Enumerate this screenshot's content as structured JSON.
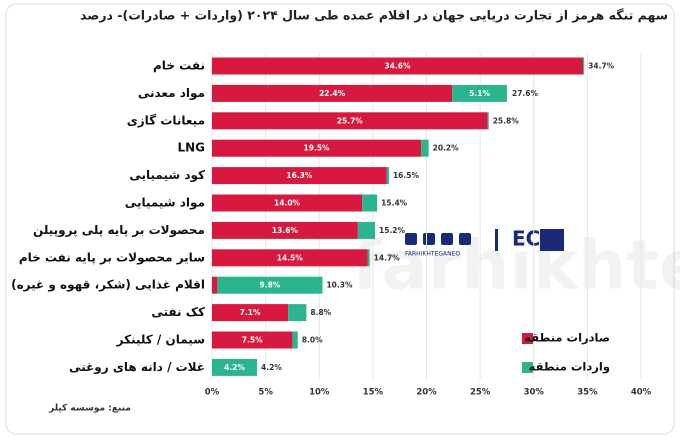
{
  "chart_data": {
    "type": "stacked-bar-horizontal",
    "title": "سهم تنگه هرمز از تجارت دریایی جهان در اقلام عمده طی سال ۲۰۲۴ (واردات + صادرات)- درصد",
    "categories": [
      "نفت خام",
      "مواد معدنی",
      "میعانات گازی",
      "LNG",
      "کود شیمیایی",
      "مواد شیمیایی",
      "محصولات بر پایه پلی پروپیلن",
      "سایر محصولات بر پایه نفت خام",
      "اقلام غذایی (شکر، قهوه و غیره)",
      "کک نفتی",
      "سیمان / کلینکر",
      "غلات / دانه های روغنی"
    ],
    "series": [
      {
        "name": "صادرات منطقه",
        "color": "#d7193f",
        "values": [
          34.6,
          22.4,
          25.7,
          19.5,
          16.3,
          14.0,
          13.6,
          14.5,
          0.5,
          7.1,
          7.5,
          0
        ],
        "value_labels": [
          "34.6%",
          "22.4%",
          "25.7%",
          "19.5%",
          "16.3%",
          "14.0%",
          "13.6%",
          "14.5%",
          null,
          "7.1%",
          "7.5%",
          null
        ]
      },
      {
        "name": "واردات منطقه",
        "color": "#2bb58f",
        "values": [
          0.1,
          5.1,
          0.1,
          0.7,
          0.2,
          1.4,
          1.6,
          0.2,
          9.8,
          1.7,
          0.5,
          4.2
        ],
        "value_labels": [
          null,
          "5.1%",
          null,
          null,
          null,
          null,
          null,
          null,
          "9.8%",
          null,
          null,
          "4.2%"
        ]
      }
    ],
    "totals": {
      "values": [
        34.7,
        27.6,
        25.8,
        20.2,
        16.5,
        15.4,
        15.2,
        14.7,
        10.3,
        8.8,
        8.0,
        4.2
      ],
      "value_labels": [
        "34.7%",
        "27.6%",
        "25.8%",
        "20.2%",
        "16.5%",
        "15.4%",
        "15.2%",
        "14.7%",
        "10.3%",
        "8.8%",
        "8.0%",
        "4.2%"
      ]
    },
    "xlim": [
      0,
      40
    ],
    "xticks": [
      {
        "value": 0,
        "label": "0%"
      },
      {
        "value": 5,
        "label": "5%"
      },
      {
        "value": 10,
        "label": "10%"
      },
      {
        "value": 15,
        "label": "15%"
      },
      {
        "value": 20,
        "label": "20%"
      },
      {
        "value": 25,
        "label": "25%"
      },
      {
        "value": 30,
        "label": "30%"
      },
      {
        "value": 35,
        "label": "35%"
      },
      {
        "value": 40,
        "label": "40%"
      }
    ],
    "grid": true,
    "source": "منبع: موسسه کپلر",
    "logo_text": "FARHIKHTEGANEO",
    "watermark": "farhikhtegan"
  }
}
